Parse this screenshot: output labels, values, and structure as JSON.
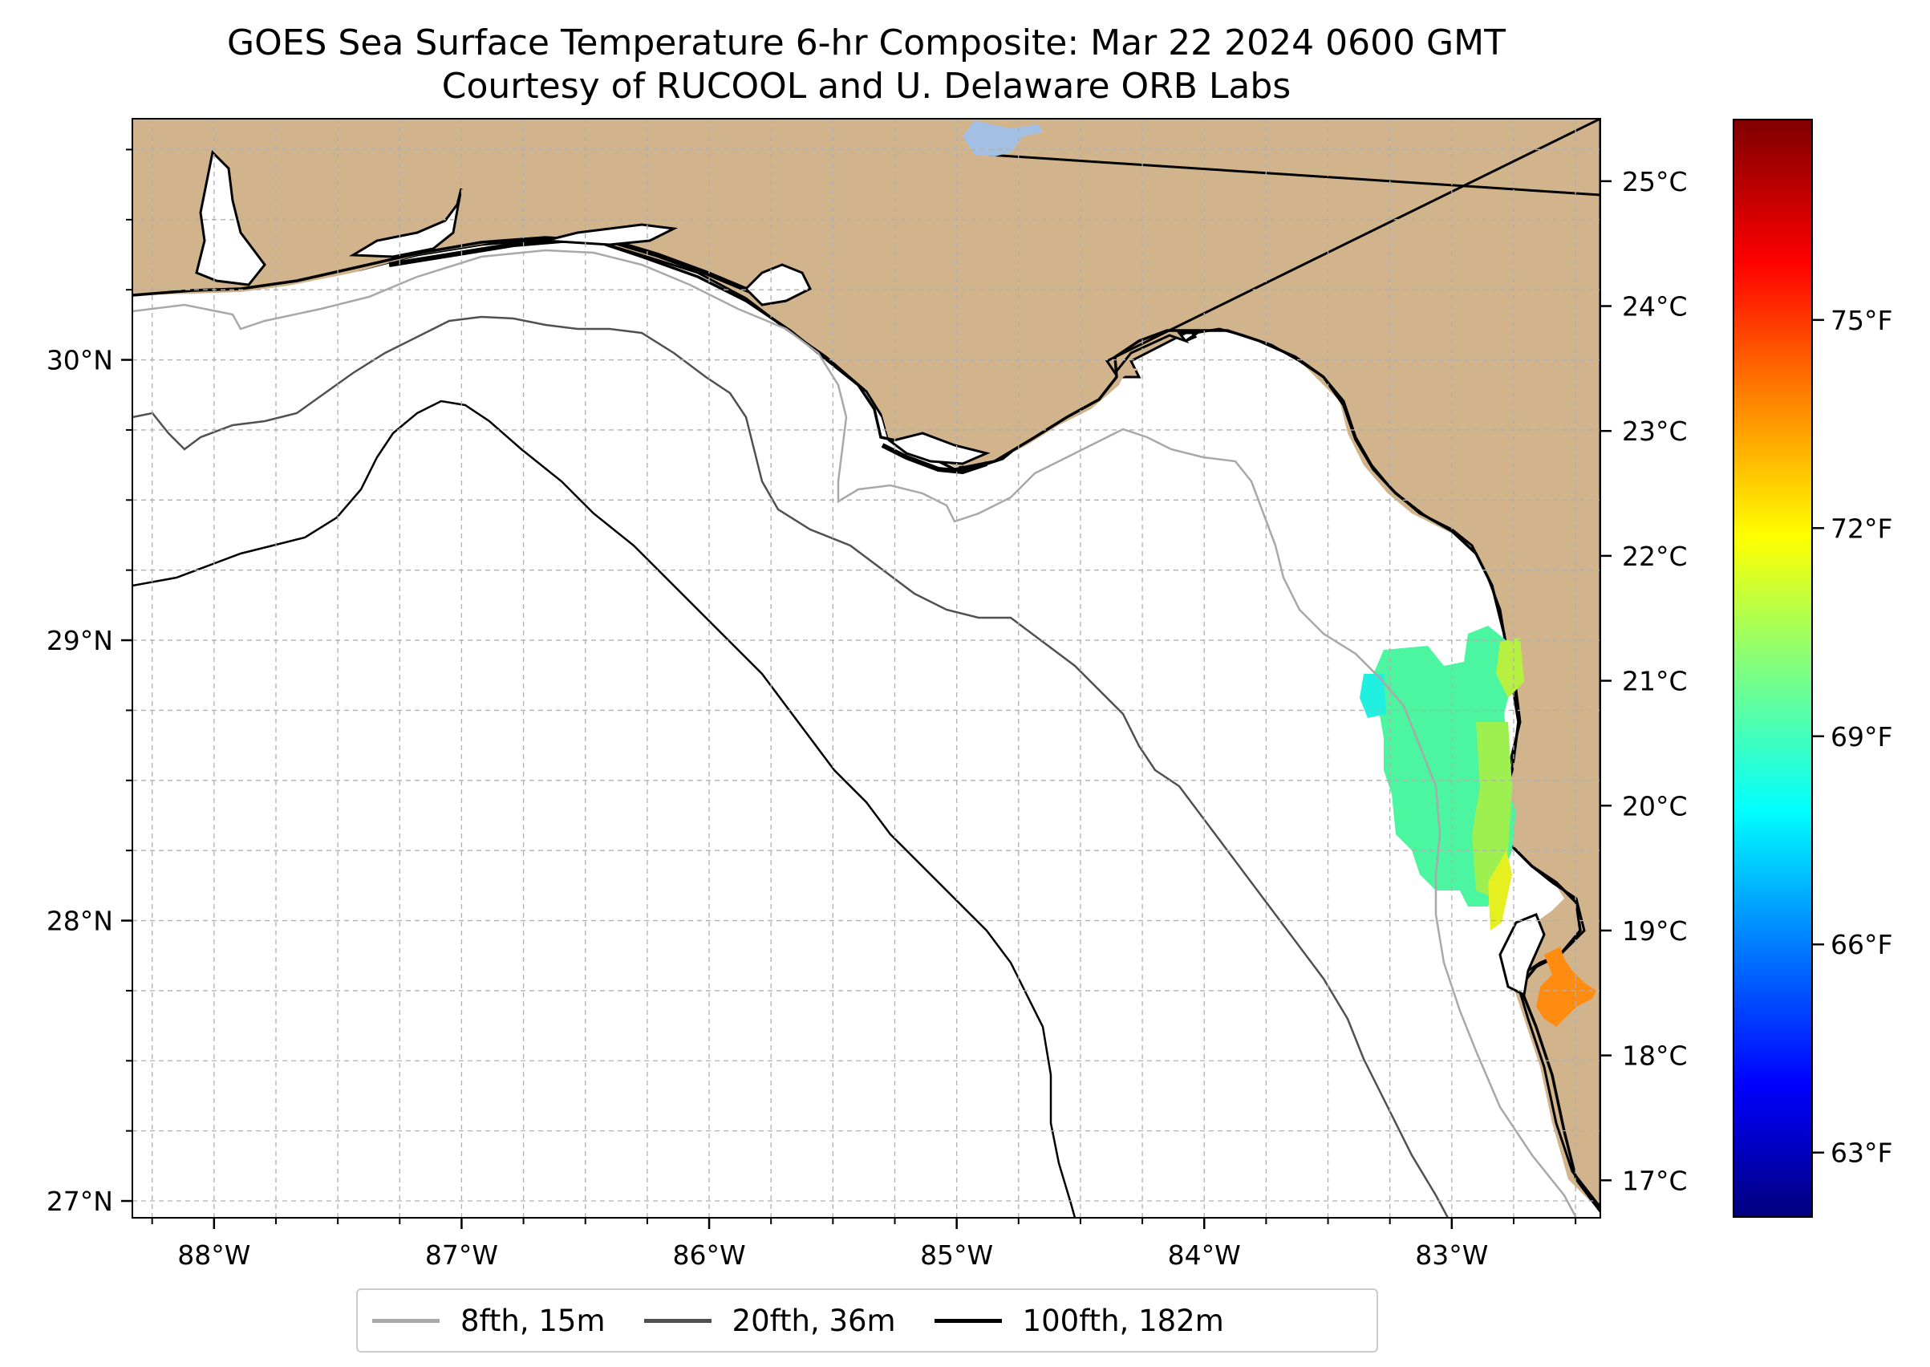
{
  "title": "GOES Sea Surface Temperature 6-hr Composite: Mar 22 2024 0600 GMT",
  "subtitle": "Courtesy of RUCOOL and U. Delaware ORB Labs",
  "colors": {
    "land": "#d2b48c",
    "water": "#ffffff",
    "grid": "#b0b0b0",
    "contour_8fth": "#a8a8a8",
    "contour_20fth": "#505050",
    "contour_100fth": "#000000",
    "lake": "#a3bfe3"
  },
  "chart_data": {
    "type": "heatmap",
    "x_extent_deg": [
      -88.33,
      -82.4
    ],
    "y_extent_deg": [
      26.94,
      30.86
    ],
    "x_ticks": [
      {
        "value": -88,
        "label": "88°W"
      },
      {
        "value": -87,
        "label": "87°W"
      },
      {
        "value": -86,
        "label": "86°W"
      },
      {
        "value": -85,
        "label": "85°W"
      },
      {
        "value": -84,
        "label": "84°W"
      },
      {
        "value": -83,
        "label": "83°W"
      }
    ],
    "y_ticks": [
      {
        "value": 30,
        "label": "30°N"
      },
      {
        "value": 29,
        "label": "29°N"
      },
      {
        "value": 28,
        "label": "28°N"
      },
      {
        "value": 27,
        "label": "27°N"
      }
    ],
    "grid": true,
    "grid_spacing_deg": 0.25,
    "colorbar": {
      "colormap": "jet",
      "range_c": [
        16.7,
        25.5
      ],
      "celsius_ticks": [
        {
          "value": 17,
          "label": "17°C"
        },
        {
          "value": 18,
          "label": "18°C"
        },
        {
          "value": 19,
          "label": "19°C"
        },
        {
          "value": 20,
          "label": "20°C"
        },
        {
          "value": 21,
          "label": "21°C"
        },
        {
          "value": 22,
          "label": "22°C"
        },
        {
          "value": 23,
          "label": "23°C"
        },
        {
          "value": 24,
          "label": "24°C"
        },
        {
          "value": 25,
          "label": "25°C"
        }
      ],
      "fahrenheit_ticks": [
        {
          "value": 63,
          "label": "63°F"
        },
        {
          "value": 66,
          "label": "66°F"
        },
        {
          "value": 69,
          "label": "69°F"
        },
        {
          "value": 72,
          "label": "72°F"
        },
        {
          "value": 75,
          "label": "75°F"
        }
      ]
    },
    "sst_patches": [
      {
        "lat": 28.85,
        "lon": -83.2,
        "temp_c": 20.9
      },
      {
        "lat": 28.65,
        "lon": -83.35,
        "temp_c": 20.4
      },
      {
        "lat": 28.55,
        "lon": -83.1,
        "temp_c": 21.2
      },
      {
        "lat": 28.4,
        "lon": -83.05,
        "temp_c": 21.3
      },
      {
        "lat": 28.2,
        "lon": -82.95,
        "temp_c": 21.6
      },
      {
        "lat": 28.1,
        "lon": -82.85,
        "temp_c": 22.0
      },
      {
        "lat": 28.85,
        "lon": -82.78,
        "temp_c": 22.0
      },
      {
        "lat": 27.75,
        "lon": -82.58,
        "temp_c": 23.5
      }
    ],
    "legend": {
      "placement": "bottom-center",
      "entries": [
        {
          "label": "8fth, 15m",
          "color": "#a8a8a8"
        },
        {
          "label": "20fth, 36m",
          "color": "#505050"
        },
        {
          "label": "100fth, 182m",
          "color": "#000000"
        }
      ]
    }
  }
}
